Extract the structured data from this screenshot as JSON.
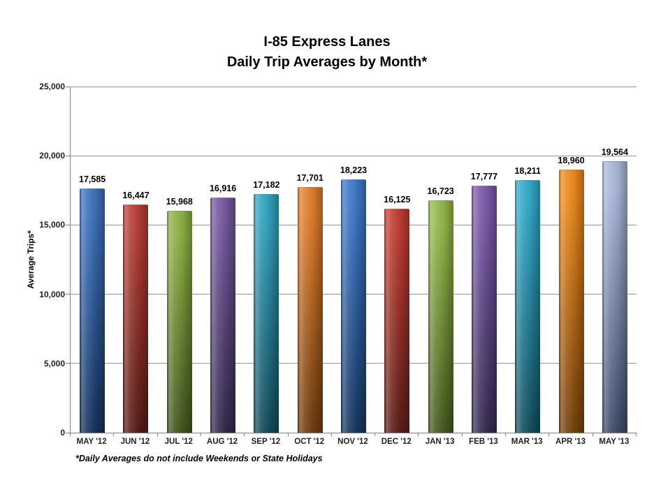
{
  "title": {
    "line1": "I-85 Express Lanes",
    "line2": "Daily Trip Averages by Month*"
  },
  "footnote": "*Daily Averages do not include Weekends or State Holidays",
  "chart_data": {
    "type": "bar",
    "title": "I-85 Express Lanes — Daily Trip Averages by Month*",
    "xlabel": "",
    "ylabel": "Average Trips*",
    "ylim": [
      0,
      25000
    ],
    "yticks": [
      0,
      5000,
      10000,
      15000,
      20000,
      25000
    ],
    "ytick_labels": [
      "0",
      "5,000",
      "10,000",
      "15,000",
      "20,000",
      "25,000"
    ],
    "grid": true,
    "legend": false,
    "categories": [
      "MAY '12",
      "JUN '12",
      "JUL '12",
      "AUG '12",
      "SEP '12",
      "OCT '12",
      "NOV '12",
      "DEC '12",
      "JAN '13",
      "FEB '13",
      "MAR '13",
      "APR '13",
      "MAY '13"
    ],
    "values": [
      17585,
      16447,
      15968,
      16916,
      17182,
      17701,
      18223,
      16125,
      16723,
      17777,
      18211,
      18960,
      19564
    ],
    "value_labels": [
      "17,585",
      "16,447",
      "15,968",
      "16,916",
      "17,182",
      "17,701",
      "18,223",
      "16,125",
      "16,723",
      "17,777",
      "18,211",
      "18,960",
      "19,564"
    ],
    "bar_colors": [
      {
        "top": "#3E72BE",
        "bottom": "#17335C"
      },
      {
        "top": "#B84037",
        "bottom": "#571D18"
      },
      {
        "top": "#8DB146",
        "bottom": "#42561E"
      },
      {
        "top": "#75599F",
        "bottom": "#352A4D"
      },
      {
        "top": "#33A3C0",
        "bottom": "#154C5B"
      },
      {
        "top": "#E07F2C",
        "bottom": "#6F3D12"
      },
      {
        "top": "#3F78C8",
        "bottom": "#183761"
      },
      {
        "top": "#C23E34",
        "bottom": "#5C1F19"
      },
      {
        "top": "#92B94A",
        "bottom": "#465A20"
      },
      {
        "top": "#7C5BAA",
        "bottom": "#382C52"
      },
      {
        "top": "#32AAC8",
        "bottom": "#155061"
      },
      {
        "top": "#EC8A1E",
        "bottom": "#75420D"
      },
      {
        "top": "#AAB8DC",
        "bottom": "#3E4A68"
      }
    ],
    "gridline_color": "#969696",
    "axis_color": "#808080"
  }
}
